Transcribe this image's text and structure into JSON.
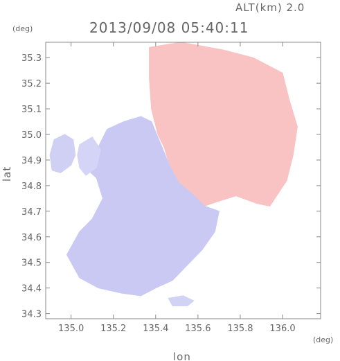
{
  "chart_data": {
    "type": "heatmap",
    "title": "2013/09/08 05:40:11",
    "subtitle": "ALT(km) 2.0",
    "xlabel": "lon",
    "ylabel": "lat",
    "xunit": "(deg)",
    "yunit": "(deg)",
    "xlim": [
      134.88,
      136.18
    ],
    "ylim": [
      34.28,
      35.36
    ],
    "xticks": [
      135.0,
      135.2,
      135.4,
      135.6,
      135.8,
      136.0
    ],
    "yticks": [
      34.3,
      34.4,
      34.5,
      34.6,
      34.7,
      34.8,
      34.9,
      35.0,
      35.1,
      35.2,
      35.3
    ],
    "xtick_labels": [
      "135.0",
      "135.2",
      "135.4",
      "135.6",
      "135.8",
      "136.0"
    ],
    "ytick_labels": [
      "34.3",
      "34.4",
      "34.5",
      "34.6",
      "34.7",
      "34.8",
      "34.9",
      "35.0",
      "35.1",
      "35.2",
      "35.3"
    ],
    "grid": false,
    "colors": {
      "frame": "#888888",
      "text": "#666666",
      "negative": "#c0c0f4",
      "positive": "#f8b4b4"
    },
    "regions": [
      {
        "name": "positive",
        "color": "#f9c3c3",
        "points": [
          [
            135.37,
            35.34
          ],
          [
            135.52,
            35.36
          ],
          [
            135.72,
            35.33
          ],
          [
            135.86,
            35.3
          ],
          [
            136.0,
            35.24
          ],
          [
            136.03,
            35.14
          ],
          [
            136.07,
            35.03
          ],
          [
            136.05,
            34.92
          ],
          [
            136.02,
            34.82
          ],
          [
            135.94,
            34.72
          ],
          [
            135.88,
            34.73
          ],
          [
            135.78,
            34.76
          ],
          [
            135.7,
            34.74
          ],
          [
            135.63,
            34.72
          ],
          [
            135.57,
            34.77
          ],
          [
            135.51,
            34.81
          ],
          [
            135.47,
            34.87
          ],
          [
            135.44,
            34.95
          ],
          [
            135.41,
            35.0
          ],
          [
            135.38,
            35.1
          ],
          [
            135.37,
            35.22
          ]
        ]
      },
      {
        "name": "negative-main",
        "color": "#c9c9f3",
        "points": [
          [
            135.17,
            35.02
          ],
          [
            135.25,
            35.05
          ],
          [
            135.33,
            35.07
          ],
          [
            135.38,
            35.05
          ],
          [
            135.43,
            34.95
          ],
          [
            135.47,
            34.87
          ],
          [
            135.51,
            34.81
          ],
          [
            135.57,
            34.77
          ],
          [
            135.63,
            34.72
          ],
          [
            135.7,
            34.7
          ],
          [
            135.68,
            34.62
          ],
          [
            135.62,
            34.55
          ],
          [
            135.55,
            34.49
          ],
          [
            135.48,
            34.43
          ],
          [
            135.4,
            34.4
          ],
          [
            135.33,
            34.37
          ],
          [
            135.24,
            34.38
          ],
          [
            135.13,
            34.4
          ],
          [
            135.04,
            34.44
          ],
          [
            134.98,
            34.53
          ],
          [
            135.04,
            34.62
          ],
          [
            135.1,
            34.67
          ],
          [
            135.15,
            34.75
          ],
          [
            135.12,
            34.83
          ],
          [
            135.08,
            34.86
          ],
          [
            135.11,
            34.92
          ],
          [
            135.14,
            34.97
          ]
        ]
      },
      {
        "name": "negative-west",
        "color": "#d0d0f5",
        "points": [
          [
            134.92,
            34.98
          ],
          [
            134.97,
            35.0
          ],
          [
            135.01,
            34.98
          ],
          [
            135.02,
            34.92
          ],
          [
            135.0,
            34.88
          ],
          [
            134.95,
            34.85
          ],
          [
            134.91,
            34.86
          ],
          [
            134.9,
            34.92
          ]
        ]
      },
      {
        "name": "negative-northwest",
        "color": "#d4d4f6",
        "points": [
          [
            135.04,
            34.96
          ],
          [
            135.1,
            34.99
          ],
          [
            135.14,
            34.94
          ],
          [
            135.12,
            34.87
          ],
          [
            135.07,
            34.84
          ],
          [
            135.04,
            34.87
          ],
          [
            135.03,
            34.92
          ]
        ]
      },
      {
        "name": "negative-south",
        "color": "#d2d2f5",
        "points": [
          [
            135.46,
            34.36
          ],
          [
            135.53,
            34.37
          ],
          [
            135.58,
            34.35
          ],
          [
            135.55,
            34.33
          ],
          [
            135.48,
            34.33
          ]
        ]
      }
    ]
  }
}
